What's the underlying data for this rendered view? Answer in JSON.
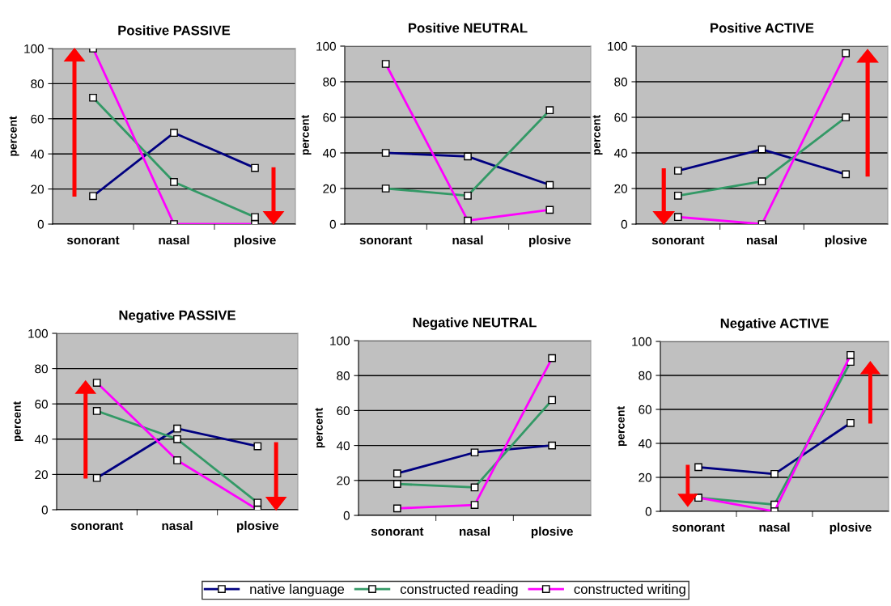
{
  "chart_data": [
    {
      "type": "line",
      "title": "Positive PASSIVE",
      "ylabel": "percent",
      "categories": [
        "sonorant",
        "nasal",
        "plosive"
      ],
      "ylim": [
        0,
        100
      ],
      "yticks": [
        0,
        20,
        40,
        60,
        80,
        100
      ],
      "grid": "y",
      "marker": "square",
      "legend": "bottom",
      "series": [
        {
          "name": "native language",
          "color": "#000080",
          "values": [
            16,
            52,
            32
          ]
        },
        {
          "name": "constructed reading",
          "color": "#339966",
          "values": [
            72,
            24,
            4
          ]
        },
        {
          "name": "constructed writing",
          "color": "#ff00ff",
          "values": [
            100,
            0,
            0
          ]
        }
      ]
    },
    {
      "type": "line",
      "title": "Positive NEUTRAL",
      "ylabel": "percent",
      "categories": [
        "sonorant",
        "nasal",
        "plosive"
      ],
      "ylim": [
        0,
        100
      ],
      "yticks": [
        0,
        20,
        40,
        60,
        80,
        100
      ],
      "grid": "y",
      "marker": "square",
      "series": [
        {
          "color": "#000080",
          "values": [
            40,
            38,
            22
          ]
        },
        {
          "color": "#339966",
          "values": [
            20,
            16,
            64
          ]
        },
        {
          "color": "#ff00ff",
          "values": [
            90,
            2,
            8
          ]
        }
      ]
    },
    {
      "type": "line",
      "title": "Positive ACTIVE",
      "ylabel": "percent",
      "categories": [
        "sonorant",
        "nasal",
        "plosive"
      ],
      "ylim": [
        0,
        100
      ],
      "yticks": [
        0,
        20,
        40,
        60,
        80,
        100
      ],
      "grid": "y",
      "marker": "square",
      "series": [
        {
          "color": "#000080",
          "values": [
            30,
            42,
            28
          ]
        },
        {
          "color": "#339966",
          "values": [
            16,
            24,
            60
          ]
        },
        {
          "color": "#ff00ff",
          "values": [
            4,
            0,
            96
          ]
        }
      ]
    },
    {
      "type": "line",
      "title": "Negative PASSIVE",
      "ylabel": "percent",
      "categories": [
        "sonorant",
        "nasal",
        "plosive"
      ],
      "ylim": [
        0,
        100
      ],
      "yticks": [
        0,
        20,
        40,
        60,
        80,
        100
      ],
      "grid": "y",
      "marker": "square",
      "series": [
        {
          "color": "#000080",
          "values": [
            18,
            46,
            36
          ]
        },
        {
          "color": "#339966",
          "values": [
            56,
            40,
            4
          ]
        },
        {
          "color": "#ff00ff",
          "values": [
            72,
            28,
            0
          ]
        }
      ]
    },
    {
      "type": "line",
      "title": "Negative NEUTRAL",
      "ylabel": "percent",
      "categories": [
        "sonorant",
        "nasal",
        "plosive"
      ],
      "ylim": [
        0,
        100
      ],
      "yticks": [
        0,
        20,
        40,
        60,
        80,
        100
      ],
      "grid": "y",
      "marker": "square",
      "series": [
        {
          "color": "#000080",
          "values": [
            24,
            36,
            40
          ]
        },
        {
          "color": "#339966",
          "values": [
            18,
            16,
            66
          ]
        },
        {
          "color": "#ff00ff",
          "values": [
            4,
            6,
            90
          ]
        }
      ]
    },
    {
      "type": "line",
      "title": "Negative ACTIVE",
      "ylabel": "percent",
      "categories": [
        "sonorant",
        "nasal",
        "plosive"
      ],
      "ylim": [
        0,
        100
      ],
      "yticks": [
        0,
        20,
        40,
        60,
        80,
        100
      ],
      "grid": "y",
      "marker": "square",
      "series": [
        {
          "color": "#000080",
          "values": [
            26,
            22,
            52
          ]
        },
        {
          "color": "#339966",
          "values": [
            8,
            4,
            88
          ]
        },
        {
          "color": "#ff00ff",
          "values": [
            8,
            0,
            92
          ]
        }
      ]
    }
  ]
}
